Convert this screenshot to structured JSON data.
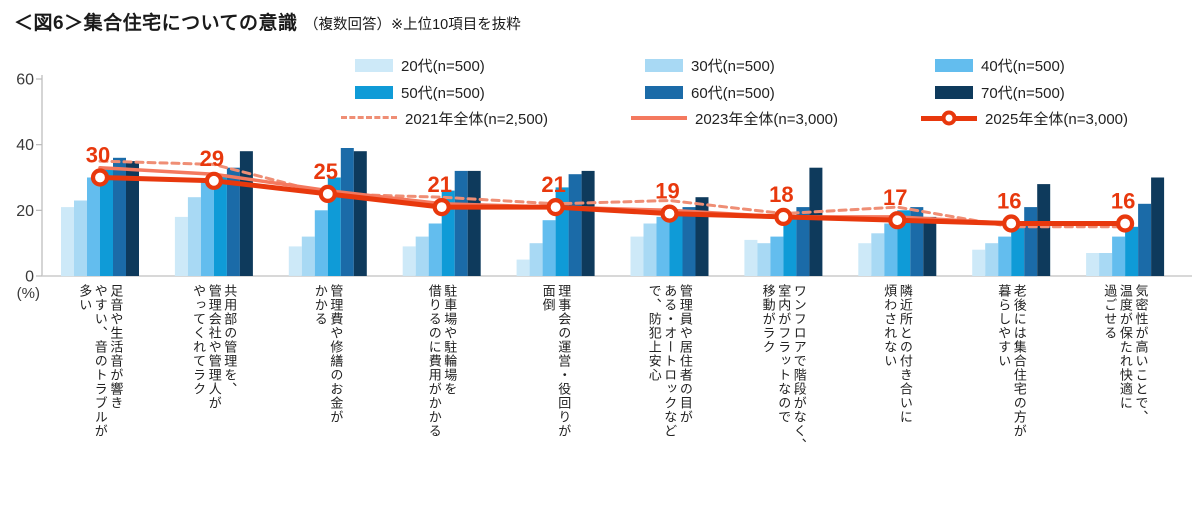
{
  "title": {
    "main": "＜図6＞集合住宅についての意識",
    "sub": "（複数回答）※上位10項目を抜粋"
  },
  "colors": {
    "accent_red": "#e8380d",
    "axis_line": "#b9b9b9",
    "baseline": "#cccccc",
    "axis_text": "#3a3a3a"
  },
  "chart_data": {
    "type": "grouped-bar-with-lines",
    "unit_label": "(%)",
    "ylim": [
      0,
      60
    ],
    "yticks": [
      0,
      20,
      40,
      60
    ],
    "grid": false,
    "legend_position": "top",
    "categories": [
      "足音や生活音が響き\nやすい、音のトラブルが\n多い",
      "共用部の管理を、\n管理会社や管理人が\nやってくれてラク",
      "管理費や修繕のお金が\nかかる",
      "駐車場や駐輪場を\n借りるのに費用がかかる",
      "理事会の運営・役回りが\n面倒",
      "管理員や居住者の目が\nある・オートロックなど\nで、防犯上安心",
      "ワンフロアで階段がなく、\n室内がフラットなので\n移動がラク",
      "隣近所との付き合いに\n煩わされない",
      "老後には集合住宅の方が\n暮らしやすい",
      "気密性が高いことで、\n温度が保たれ快適に\n過ごせる"
    ],
    "series": [
      {
        "name": "20代(n=500)",
        "color": "#cde9f8",
        "values": [
          21,
          18,
          9,
          9,
          5,
          12,
          11,
          10,
          8,
          7
        ]
      },
      {
        "name": "30代(n=500)",
        "color": "#a8d9f4",
        "values": [
          23,
          24,
          12,
          12,
          10,
          16,
          10,
          13,
          10,
          7
        ]
      },
      {
        "name": "40代(n=500)",
        "color": "#63bdee",
        "values": [
          30,
          29,
          20,
          16,
          17,
          18,
          12,
          16,
          12,
          12
        ]
      },
      {
        "name": "50代(n=500)",
        "color": "#0f9bd7",
        "values": [
          33,
          31,
          30,
          26,
          27,
          20,
          18,
          20,
          16,
          15
        ]
      },
      {
        "name": "60代(n=500)",
        "color": "#1b6ba8",
        "values": [
          36,
          33,
          39,
          32,
          31,
          21,
          21,
          21,
          21,
          22
        ]
      },
      {
        "name": "70代(n=500)",
        "color": "#0e3a5c",
        "values": [
          35,
          38,
          38,
          32,
          32,
          24,
          33,
          18,
          28,
          30
        ]
      }
    ],
    "lines": [
      {
        "name": "2021年全体(n=2,500)",
        "style": "dashed",
        "color": "#ef8e75",
        "values": [
          35,
          34,
          25,
          24,
          22,
          23,
          19,
          21,
          15,
          15
        ]
      },
      {
        "name": "2023年全体(n=3,000)",
        "style": "solid",
        "color": "#f4795f",
        "values": [
          33,
          31,
          26,
          22,
          21,
          20,
          18,
          18,
          16,
          16
        ]
      },
      {
        "name": "2025年全体(n=3,000)",
        "style": "marker",
        "color": "#e8380d",
        "values": [
          30,
          29,
          25,
          21,
          21,
          19,
          18,
          17,
          16,
          16
        ],
        "point_labels": true
      }
    ]
  }
}
